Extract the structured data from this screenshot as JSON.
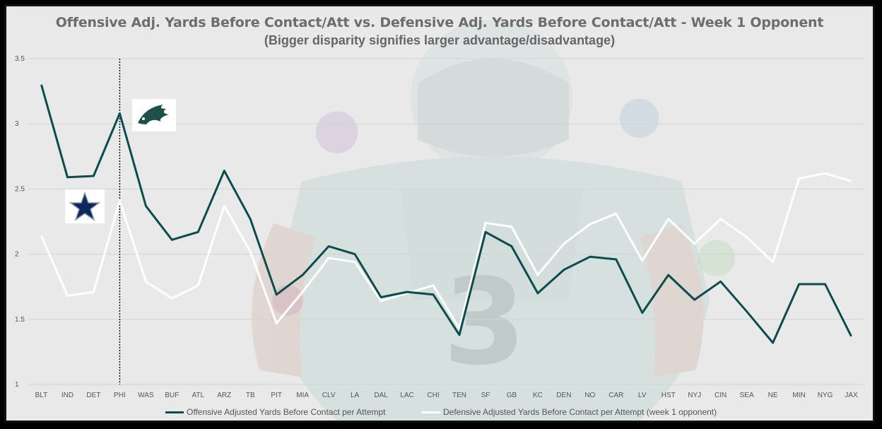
{
  "title": "Offensive Adj. Yards Before Contact/Att vs. Defensive Adj. Yards Before Contact/Att - Week 1 Opponent",
  "subtitle": "(Bigger disparity signifies larger advantage/disadvantage)",
  "colors": {
    "offense": "#0b4c4c",
    "defense": "#ffffff",
    "grid": "#d4d4d4",
    "axis_text": "#555555"
  },
  "chart_data": {
    "type": "line",
    "title": "Offensive Adj. Yards Before Contact/Att vs. Defensive Adj. Yards Before Contact/Att - Week 1 Opponent",
    "subtitle": "(Bigger disparity signifies larger advantage/disadvantage)",
    "categories": [
      "BLT",
      "IND",
      "DET",
      "PHI",
      "WAS",
      "BUF",
      "ATL",
      "ARZ",
      "TB",
      "PIT",
      "MIA",
      "CLV",
      "LA",
      "DAL",
      "LAC",
      "CHI",
      "TEN",
      "SF",
      "GB",
      "KC",
      "DEN",
      "NO",
      "CAR",
      "LV",
      "HST",
      "NYJ",
      "CIN",
      "SEA",
      "NE",
      "MIN",
      "NYG",
      "JAX"
    ],
    "series": [
      {
        "name": "Offensive Adjusted Yards Before Contact per Attempt",
        "color": "#0b4c4c",
        "values": [
          3.3,
          2.59,
          2.6,
          3.08,
          2.37,
          2.11,
          2.17,
          2.64,
          2.27,
          1.69,
          1.84,
          2.06,
          2.0,
          1.67,
          1.71,
          1.69,
          1.38,
          2.17,
          2.06,
          1.7,
          1.88,
          1.98,
          1.96,
          1.55,
          1.84,
          1.65,
          1.79,
          1.56,
          1.32,
          1.77,
          1.77,
          1.37
        ]
      },
      {
        "name": "Defensive Adjusted Yards Before Contact per Attempt (week 1 opponent)",
        "color": "#ffffff",
        "values": [
          2.14,
          1.68,
          1.71,
          2.41,
          1.79,
          1.66,
          1.76,
          2.37,
          2.02,
          1.47,
          1.71,
          1.97,
          1.94,
          1.64,
          1.7,
          1.76,
          1.43,
          2.24,
          2.21,
          1.84,
          2.08,
          2.23,
          2.31,
          1.95,
          2.27,
          2.08,
          2.27,
          2.13,
          1.94,
          2.58,
          2.62,
          2.56
        ]
      }
    ],
    "ylim": [
      1,
      3.5
    ],
    "yticks": [
      "1",
      "1.5",
      "2",
      "2.5",
      "3",
      "3.5"
    ],
    "grid": true,
    "legend_position": "bottom",
    "marker_line_at": "PHI"
  },
  "logos": {
    "eagles": "eagles-logo",
    "cowboys": "cowboys-star-logo"
  },
  "background": "eagles-player-watermark"
}
